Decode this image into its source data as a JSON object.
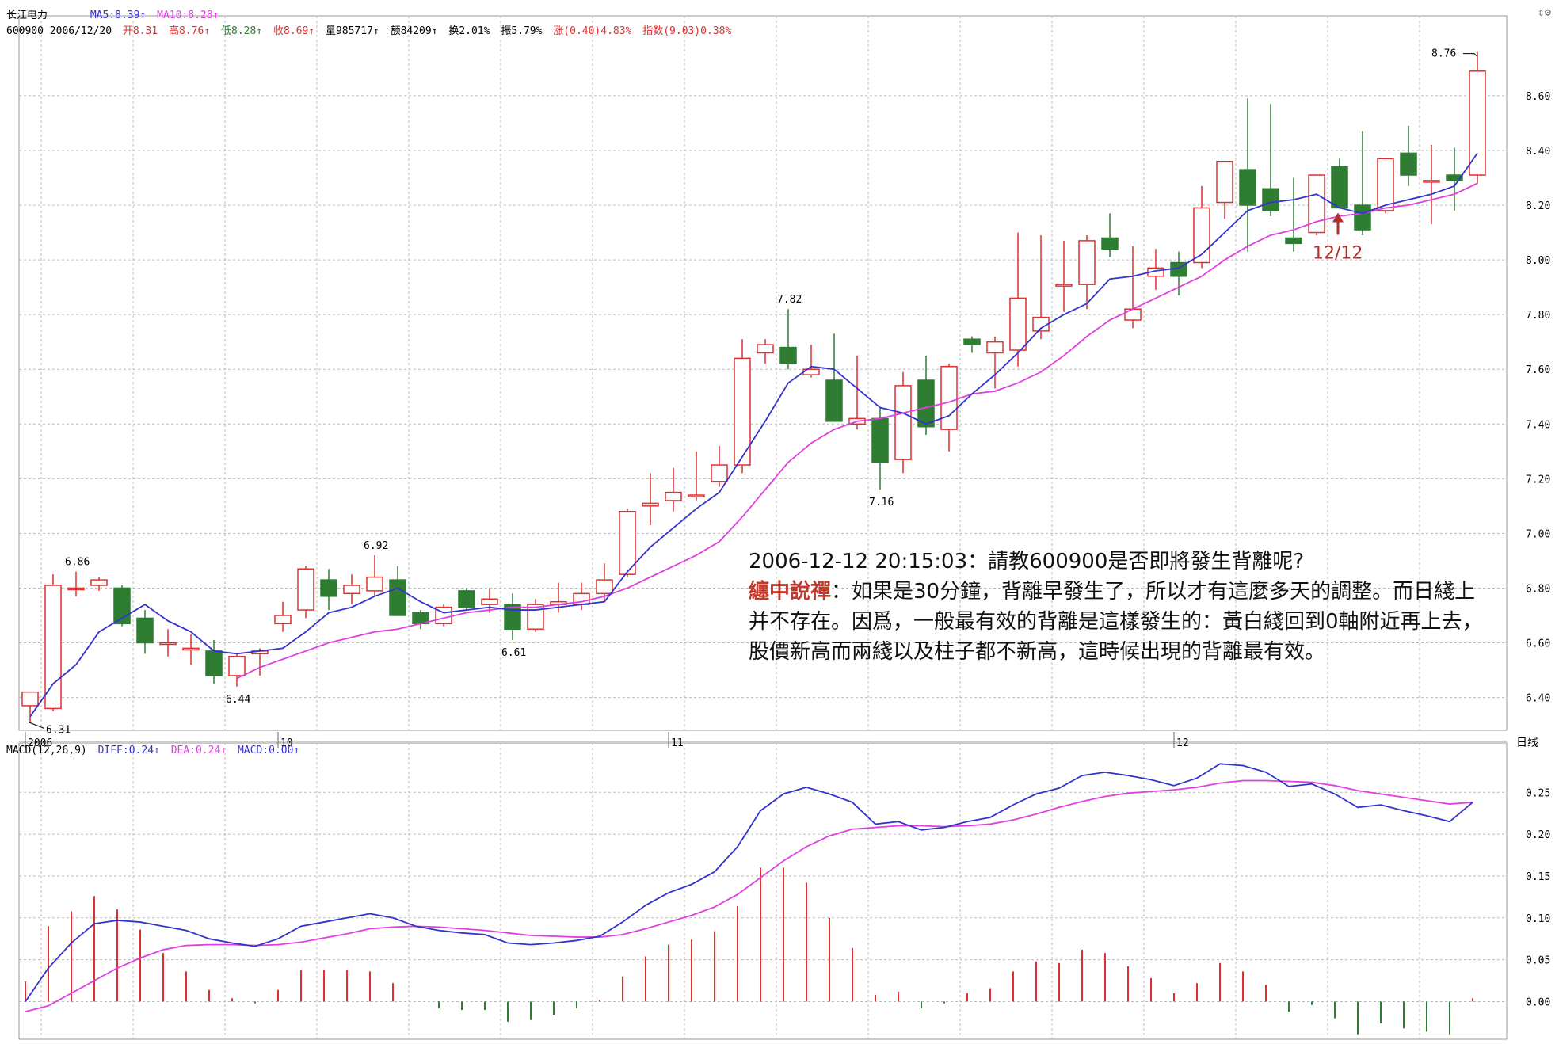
{
  "header": {
    "stock_name": "长江电力",
    "ma5_label": "MA5:8.39↑",
    "ma10_label": "MA10:8.28↑",
    "code_date": "600900 2006/12/20",
    "open": "开8.31",
    "high": "高8.76↑",
    "low": "低8.28↑",
    "close": "收8.69↑",
    "volume": "量985717↑",
    "amount": "额84209↑",
    "turnover": "换2.01%",
    "amplitude": "振5.79%",
    "change": "涨(0.40)4.83%",
    "index": "指数(9.03)0.38%",
    "corner_icons": "⇕⚙"
  },
  "macd_header": {
    "params": "MACD(12,26,9)",
    "diff": "DIFF:0.24↑",
    "dea": "DEA:0.24↑",
    "macd": "MACD:0.00↑"
  },
  "period_label": "日线",
  "annotation": {
    "line1": "2006-12-12 20:15:03：請教600900是否即將發生背離呢?",
    "speaker": "纏中說禪",
    "reply": "：如果是30分鐘，背離早發生了，所以才有這麼多天的調整。而日綫上并不存在。因爲，一般最有效的背離是這樣發生的：黃白綫回到0軸附近再上去，股價新高而兩綫以及柱子都不新高，這時候出現的背離最有效。"
  },
  "colors": {
    "up": "#e03030",
    "down": "#2e7d32",
    "ma5": "#3333cc",
    "ma10": "#e040e0",
    "grid": "#bbbbbb",
    "arrow": "#b03030"
  },
  "chart_data": [
    {
      "type": "candlestick",
      "x_tick_labels": [
        "2006",
        "10",
        "11",
        "12"
      ],
      "x_tick_index": [
        0,
        11,
        28,
        50
      ],
      "y_ticks": [
        "6.40",
        "6.60",
        "6.80",
        "7.00",
        "7.20",
        "7.40",
        "7.60",
        "7.80",
        "8.00",
        "8.20",
        "8.40",
        "8.60"
      ],
      "ylim": [
        6.28,
        8.84
      ],
      "candles": [
        {
          "o": 6.37,
          "h": 6.42,
          "l": 6.31,
          "c": 6.42
        },
        {
          "o": 6.36,
          "h": 6.85,
          "l": 6.35,
          "c": 6.81
        },
        {
          "o": 6.8,
          "h": 6.86,
          "l": 6.77,
          "c": 6.8
        },
        {
          "o": 6.81,
          "h": 6.84,
          "l": 6.79,
          "c": 6.83
        },
        {
          "o": 6.8,
          "h": 6.81,
          "l": 6.66,
          "c": 6.67
        },
        {
          "o": 6.69,
          "h": 6.72,
          "l": 6.56,
          "c": 6.6
        },
        {
          "o": 6.6,
          "h": 6.65,
          "l": 6.55,
          "c": 6.6
        },
        {
          "o": 6.58,
          "h": 6.63,
          "l": 6.52,
          "c": 6.58
        },
        {
          "o": 6.57,
          "h": 6.61,
          "l": 6.45,
          "c": 6.48
        },
        {
          "o": 6.48,
          "h": 6.56,
          "l": 6.44,
          "c": 6.55
        },
        {
          "o": 6.56,
          "h": 6.58,
          "l": 6.48,
          "c": 6.57
        },
        {
          "o": 6.67,
          "h": 6.75,
          "l": 6.64,
          "c": 6.7
        },
        {
          "o": 6.72,
          "h": 6.88,
          "l": 6.69,
          "c": 6.87
        },
        {
          "o": 6.83,
          "h": 6.87,
          "l": 6.72,
          "c": 6.77
        },
        {
          "o": 6.78,
          "h": 6.85,
          "l": 6.74,
          "c": 6.81
        },
        {
          "o": 6.79,
          "h": 6.92,
          "l": 6.77,
          "c": 6.84
        },
        {
          "o": 6.83,
          "h": 6.88,
          "l": 6.7,
          "c": 6.7
        },
        {
          "o": 6.71,
          "h": 6.72,
          "l": 6.65,
          "c": 6.67
        },
        {
          "o": 6.67,
          "h": 6.74,
          "l": 6.66,
          "c": 6.73
        },
        {
          "o": 6.79,
          "h": 6.8,
          "l": 6.72,
          "c": 6.73
        },
        {
          "o": 6.74,
          "h": 6.8,
          "l": 6.71,
          "c": 6.76
        },
        {
          "o": 6.74,
          "h": 6.78,
          "l": 6.61,
          "c": 6.65
        },
        {
          "o": 6.65,
          "h": 6.76,
          "l": 6.64,
          "c": 6.74
        },
        {
          "o": 6.74,
          "h": 6.82,
          "l": 6.71,
          "c": 6.75
        },
        {
          "o": 6.74,
          "h": 6.82,
          "l": 6.72,
          "c": 6.78
        },
        {
          "o": 6.78,
          "h": 6.89,
          "l": 6.75,
          "c": 6.83
        },
        {
          "o": 6.85,
          "h": 7.09,
          "l": 6.84,
          "c": 7.08
        },
        {
          "o": 7.1,
          "h": 7.22,
          "l": 7.03,
          "c": 7.11
        },
        {
          "o": 7.12,
          "h": 7.24,
          "l": 7.08,
          "c": 7.15
        },
        {
          "o": 7.14,
          "h": 7.3,
          "l": 7.12,
          "c": 7.14
        },
        {
          "o": 7.19,
          "h": 7.32,
          "l": 7.17,
          "c": 7.25
        },
        {
          "o": 7.25,
          "h": 7.71,
          "l": 7.22,
          "c": 7.64
        },
        {
          "o": 7.66,
          "h": 7.71,
          "l": 7.62,
          "c": 7.69
        },
        {
          "o": 7.68,
          "h": 7.82,
          "l": 7.6,
          "c": 7.62
        },
        {
          "o": 7.58,
          "h": 7.69,
          "l": 7.57,
          "c": 7.6
        },
        {
          "o": 7.56,
          "h": 7.73,
          "l": 7.42,
          "c": 7.41
        },
        {
          "o": 7.4,
          "h": 7.65,
          "l": 7.38,
          "c": 7.42
        },
        {
          "o": 7.42,
          "h": 7.46,
          "l": 7.16,
          "c": 7.26
        },
        {
          "o": 7.27,
          "h": 7.59,
          "l": 7.22,
          "c": 7.54
        },
        {
          "o": 7.56,
          "h": 7.65,
          "l": 7.36,
          "c": 7.39
        },
        {
          "o": 7.38,
          "h": 7.62,
          "l": 7.3,
          "c": 7.61
        },
        {
          "o": 7.71,
          "h": 7.72,
          "l": 7.66,
          "c": 7.69
        },
        {
          "o": 7.66,
          "h": 7.72,
          "l": 7.53,
          "c": 7.7
        },
        {
          "o": 7.67,
          "h": 8.1,
          "l": 7.61,
          "c": 7.86
        },
        {
          "o": 7.74,
          "h": 8.09,
          "l": 7.71,
          "c": 7.79
        },
        {
          "o": 7.91,
          "h": 8.07,
          "l": 7.81,
          "c": 7.91
        },
        {
          "o": 7.91,
          "h": 8.09,
          "l": 7.82,
          "c": 8.07
        },
        {
          "o": 8.08,
          "h": 8.17,
          "l": 8.01,
          "c": 8.04
        },
        {
          "o": 7.78,
          "h": 8.05,
          "l": 7.75,
          "c": 7.82
        },
        {
          "o": 7.94,
          "h": 8.04,
          "l": 7.89,
          "c": 7.97
        },
        {
          "o": 7.99,
          "h": 8.03,
          "l": 7.87,
          "c": 7.94
        },
        {
          "o": 7.99,
          "h": 8.27,
          "l": 7.97,
          "c": 8.19
        },
        {
          "o": 8.21,
          "h": 8.36,
          "l": 8.15,
          "c": 8.36
        },
        {
          "o": 8.33,
          "h": 8.59,
          "l": 8.03,
          "c": 8.2
        },
        {
          "o": 8.26,
          "h": 8.57,
          "l": 8.16,
          "c": 8.18
        },
        {
          "o": 8.08,
          "h": 8.3,
          "l": 8.03,
          "c": 8.06
        },
        {
          "o": 8.1,
          "h": 8.31,
          "l": 8.09,
          "c": 8.31
        },
        {
          "o": 8.34,
          "h": 8.37,
          "l": 8.19,
          "c": 8.19
        },
        {
          "o": 8.2,
          "h": 8.47,
          "l": 8.09,
          "c": 8.11
        },
        {
          "o": 8.18,
          "h": 8.37,
          "l": 8.17,
          "c": 8.37
        },
        {
          "o": 8.39,
          "h": 8.49,
          "l": 8.27,
          "c": 8.31
        },
        {
          "o": 8.29,
          "h": 8.42,
          "l": 8.13,
          "c": 8.29
        },
        {
          "o": 8.31,
          "h": 8.41,
          "l": 8.18,
          "c": 8.29
        },
        {
          "o": 8.31,
          "h": 8.76,
          "l": 8.28,
          "c": 8.69
        }
      ],
      "ma5": [
        6.33,
        6.45,
        6.52,
        6.64,
        6.69,
        6.74,
        6.68,
        6.64,
        6.57,
        6.56,
        6.57,
        6.58,
        6.64,
        6.71,
        6.73,
        6.77,
        6.8,
        6.75,
        6.71,
        6.72,
        6.73,
        6.72,
        6.72,
        6.73,
        6.74,
        6.75,
        6.86,
        6.95,
        7.02,
        7.09,
        7.15,
        7.28,
        7.41,
        7.55,
        7.61,
        7.6,
        7.53,
        7.46,
        7.44,
        7.4,
        7.43,
        7.51,
        7.58,
        7.66,
        7.75,
        7.8,
        7.84,
        7.93,
        7.94,
        7.96,
        7.97,
        8.02,
        8.1,
        8.18,
        8.21,
        8.22,
        8.24,
        8.19,
        8.17,
        8.2,
        8.22,
        8.24,
        8.27,
        8.39
      ],
      "ma10": [
        null,
        null,
        null,
        null,
        null,
        null,
        null,
        null,
        null,
        6.47,
        6.51,
        6.54,
        6.57,
        6.6,
        6.62,
        6.64,
        6.65,
        6.67,
        6.69,
        6.71,
        6.72,
        6.73,
        6.73,
        6.74,
        6.75,
        6.77,
        6.8,
        6.84,
        6.88,
        6.92,
        6.97,
        7.06,
        7.16,
        7.26,
        7.33,
        7.38,
        7.41,
        7.42,
        7.44,
        7.46,
        7.48,
        7.51,
        7.52,
        7.55,
        7.59,
        7.65,
        7.72,
        7.78,
        7.82,
        7.86,
        7.9,
        7.94,
        8.0,
        8.05,
        8.09,
        8.11,
        8.14,
        8.16,
        8.17,
        8.19,
        8.2,
        8.22,
        8.24,
        8.28
      ],
      "price_labels": [
        {
          "i": 0,
          "text": "6.31"
        },
        {
          "i": 2,
          "text": "6.86"
        },
        {
          "i": 9,
          "text": "6.44"
        },
        {
          "i": 15,
          "text": "6.92"
        },
        {
          "i": 21,
          "text": "6.61"
        },
        {
          "i": 33,
          "text": "7.82"
        },
        {
          "i": 37,
          "text": "7.16"
        },
        {
          "i": 63,
          "text": "8.76"
        }
      ],
      "arrow_annotation": {
        "i": 57,
        "text": "12/12"
      }
    },
    {
      "type": "macd",
      "y_ticks": [
        "0.00",
        "0.05",
        "0.10",
        "0.15",
        "0.20",
        "0.25"
      ],
      "ylim": [
        -0.045,
        0.29
      ],
      "diff": [
        0.0,
        0.04,
        0.07,
        0.093,
        0.097,
        0.095,
        0.09,
        0.085,
        0.075,
        0.07,
        0.066,
        0.075,
        0.09,
        0.095,
        0.1,
        0.105,
        0.1,
        0.09,
        0.085,
        0.082,
        0.08,
        0.07,
        0.068,
        0.07,
        0.073,
        0.078,
        0.095,
        0.115,
        0.13,
        0.14,
        0.155,
        0.185,
        0.228,
        0.248,
        0.256,
        0.248,
        0.238,
        0.212,
        0.215,
        0.205,
        0.208,
        0.215,
        0.22,
        0.235,
        0.248,
        0.255,
        0.27,
        0.274,
        0.27,
        0.265,
        0.258,
        0.267,
        0.284,
        0.282,
        0.274,
        0.257,
        0.26,
        0.248,
        0.232,
        0.235,
        0.228,
        0.222,
        0.215,
        0.238
      ],
      "dea": [
        -0.012,
        -0.005,
        0.01,
        0.025,
        0.04,
        0.052,
        0.062,
        0.067,
        0.068,
        0.068,
        0.067,
        0.068,
        0.071,
        0.076,
        0.081,
        0.087,
        0.089,
        0.09,
        0.089,
        0.087,
        0.085,
        0.082,
        0.079,
        0.078,
        0.077,
        0.077,
        0.08,
        0.087,
        0.095,
        0.103,
        0.113,
        0.128,
        0.148,
        0.168,
        0.185,
        0.198,
        0.206,
        0.208,
        0.21,
        0.21,
        0.209,
        0.21,
        0.212,
        0.217,
        0.224,
        0.232,
        0.239,
        0.245,
        0.249,
        0.251,
        0.253,
        0.256,
        0.261,
        0.264,
        0.264,
        0.263,
        0.262,
        0.258,
        0.252,
        0.248,
        0.244,
        0.24,
        0.236,
        0.238
      ],
      "macd_bars": [
        0.024,
        0.09,
        0.108,
        0.126,
        0.11,
        0.086,
        0.058,
        0.036,
        0.014,
        0.004,
        -0.002,
        0.014,
        0.038,
        0.038,
        0.038,
        0.036,
        0.022,
        0.0,
        -0.008,
        -0.01,
        -0.01,
        -0.024,
        -0.022,
        -0.016,
        -0.008,
        0.002,
        0.03,
        0.054,
        0.068,
        0.074,
        0.084,
        0.114,
        0.16,
        0.16,
        0.142,
        0.1,
        0.064,
        0.008,
        0.012,
        -0.008,
        -0.002,
        0.01,
        0.016,
        0.036,
        0.048,
        0.046,
        0.062,
        0.058,
        0.042,
        0.028,
        0.01,
        0.022,
        0.046,
        0.036,
        0.02,
        -0.012,
        -0.004,
        -0.02,
        -0.04,
        -0.026,
        -0.032,
        -0.036,
        -0.04,
        0.004
      ]
    }
  ]
}
